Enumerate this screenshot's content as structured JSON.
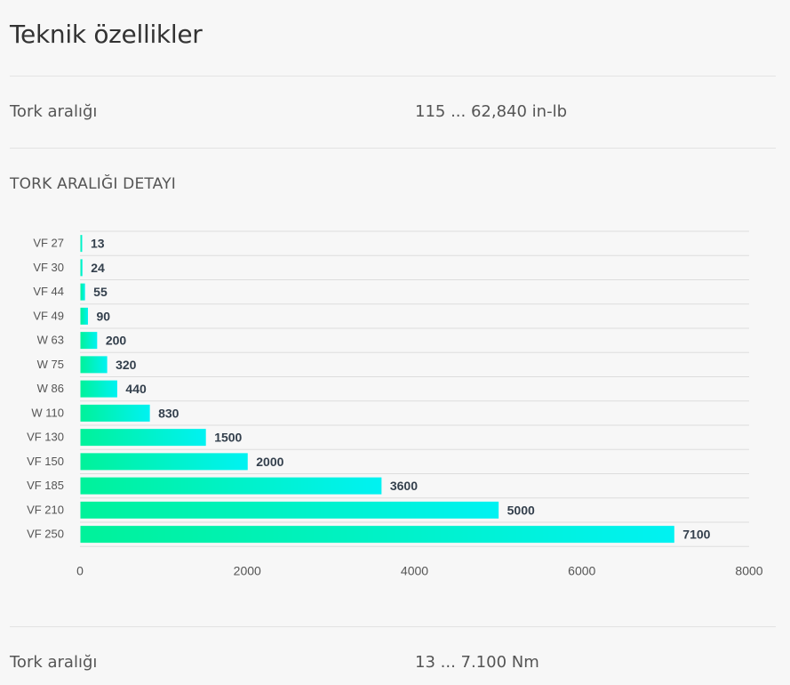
{
  "header": {
    "title": "Teknik özellikler"
  },
  "spec_rows": [
    {
      "label": "Tork aralığı",
      "value": "115 ... 62,840 in-lb"
    },
    {
      "label": "Tork aralığı",
      "value": "13 ... 7.100 Nm"
    }
  ],
  "section": {
    "label": "TORK ARALIĞI DETAYI"
  },
  "chart_data": {
    "type": "bar",
    "orientation": "horizontal",
    "categories": [
      "VF 27",
      "VF 30",
      "VF 44",
      "VF 49",
      "W 63",
      "W 75",
      "W 86",
      "W 110",
      "VF 130",
      "VF 150",
      "VF 185",
      "VF 210",
      "VF 250"
    ],
    "values": [
      13,
      24,
      55,
      90,
      200,
      320,
      440,
      830,
      1500,
      2000,
      3600,
      5000,
      7100
    ],
    "xlim": [
      0,
      8000
    ],
    "xticks": [
      0,
      2000,
      4000,
      6000,
      8000
    ],
    "title": "",
    "xlabel": "",
    "ylabel": "",
    "grid": true,
    "colors": {
      "bar_start": "#00f29a",
      "bar_end": "#00f2f2",
      "label": "#34404d",
      "grid": "#dddddd",
      "tick": "#555555"
    }
  }
}
